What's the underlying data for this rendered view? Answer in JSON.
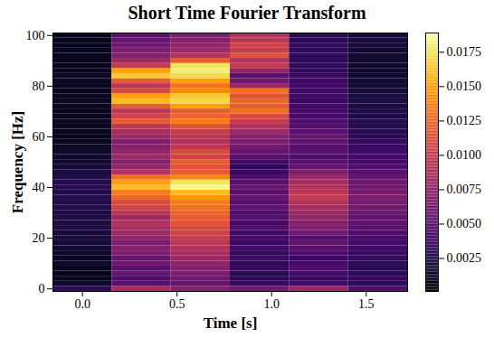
{
  "chart_data": {
    "type": "heatmap",
    "title": "Short Time Fourier Transform",
    "x_label": "Time [s]",
    "y_label": "Frequency [Hz]",
    "color": "inferno",
    "grid": false,
    "xlim": [
      -0.15625,
      1.71875
    ],
    "xticks": [
      {
        "value": 0,
        "label": "0.0"
      },
      0.5,
      {
        "value": 1,
        "label": "1.0"
      },
      1.5
    ],
    "ylim": [
      -1,
      101
    ],
    "yticks": [
      0,
      20,
      40,
      60,
      80,
      100
    ],
    "x": [
      0,
      0.3125,
      0.625,
      0.9375,
      1.25,
      1.5625
    ],
    "y": [
      0,
      2,
      4,
      6,
      8,
      10,
      12,
      14,
      16,
      18,
      20,
      22,
      24,
      26,
      28,
      30,
      32,
      34,
      36,
      38,
      40,
      42,
      44,
      46,
      48,
      50,
      52,
      54,
      56,
      58,
      60,
      62,
      64,
      66,
      68,
      70,
      72,
      74,
      76,
      78,
      80,
      82,
      84,
      86,
      88,
      90,
      92,
      94,
      96,
      98,
      100
    ],
    "values": [
      [
        0.003,
        0.0085,
        0.007,
        0.006,
        0.008,
        0.0045
      ],
      [
        0.0015,
        0.005,
        0.0055,
        0.0035,
        0.004,
        0.003
      ],
      [
        0.0012,
        0.0045,
        0.006,
        0.003,
        0.0035,
        0.0032
      ],
      [
        0.001,
        0.0055,
        0.0065,
        0.0028,
        0.004,
        0.003
      ],
      [
        0.0012,
        0.005,
        0.007,
        0.0035,
        0.0045,
        0.0028
      ],
      [
        0.0015,
        0.006,
        0.0075,
        0.003,
        0.004,
        0.003
      ],
      [
        0.0013,
        0.0055,
        0.008,
        0.0038,
        0.0035,
        0.0033
      ],
      [
        0.0016,
        0.0065,
        0.0085,
        0.0032,
        0.0045,
        0.0035
      ],
      [
        0.0018,
        0.007,
        0.009,
        0.004,
        0.005,
        0.0038
      ],
      [
        0.002,
        0.0065,
        0.0095,
        0.0035,
        0.0055,
        0.004
      ],
      [
        0.0022,
        0.0075,
        0.01,
        0.0042,
        0.0048,
        0.0042
      ],
      [
        0.002,
        0.008,
        0.0105,
        0.0038,
        0.006,
        0.0045
      ],
      [
        0.0025,
        0.0085,
        0.011,
        0.0045,
        0.0065,
        0.005
      ],
      [
        0.0022,
        0.009,
        0.0115,
        0.004,
        0.007,
        0.0052
      ],
      [
        0.0025,
        0.008,
        0.012,
        0.0048,
        0.0075,
        0.0055
      ],
      [
        0.0023,
        0.0095,
        0.0125,
        0.0045,
        0.008,
        0.0058
      ],
      [
        0.0026,
        0.0105,
        0.013,
        0.0052,
        0.0085,
        0.006
      ],
      [
        0.0024,
        0.011,
        0.0135,
        0.0048,
        0.009,
        0.0062
      ],
      [
        0.0027,
        0.0125,
        0.0145,
        0.0055,
        0.01,
        0.0065
      ],
      [
        0.0025,
        0.0135,
        0.016,
        0.005,
        0.0095,
        0.0063
      ],
      [
        0.0028,
        0.016,
        0.0185,
        0.0055,
        0.009,
        0.006
      ],
      [
        0.0026,
        0.015,
        0.0175,
        0.005,
        0.0085,
        0.0058
      ],
      [
        0.0024,
        0.013,
        0.014,
        0.0045,
        0.008,
        0.0055
      ],
      [
        0.0022,
        0.009,
        0.012,
        0.0035,
        0.0065,
        0.005
      ],
      [
        0.002,
        0.0075,
        0.0115,
        0.003,
        0.0055,
        0.0045
      ],
      [
        0.0018,
        0.007,
        0.012,
        0.004,
        0.005,
        0.0042
      ],
      [
        0.0017,
        0.008,
        0.0105,
        0.005,
        0.0045,
        0.004
      ],
      [
        0.0015,
        0.0075,
        0.011,
        0.0055,
        0.005,
        0.0038
      ],
      [
        0.0014,
        0.007,
        0.0095,
        0.006,
        0.0048,
        0.0035
      ],
      [
        0.0012,
        0.0065,
        0.009,
        0.0065,
        0.0052,
        0.0033
      ],
      [
        0.001,
        0.008,
        0.0095,
        0.007,
        0.0055,
        0.003
      ],
      [
        0.0011,
        0.0085,
        0.01,
        0.008,
        0.005,
        0.0028
      ],
      [
        0.0012,
        0.0095,
        0.0115,
        0.009,
        0.0048,
        0.0027
      ],
      [
        0.0013,
        0.012,
        0.0135,
        0.01,
        0.0045,
        0.0026
      ],
      [
        0.0012,
        0.0105,
        0.0125,
        0.011,
        0.0042,
        0.0025
      ],
      [
        0.0011,
        0.0095,
        0.012,
        0.013,
        0.004,
        0.0024
      ],
      [
        0.0013,
        0.012,
        0.015,
        0.012,
        0.0038,
        0.0023
      ],
      [
        0.0014,
        0.016,
        0.017,
        0.0125,
        0.0036,
        0.0022
      ],
      [
        0.0012,
        0.015,
        0.0165,
        0.0115,
        0.0035,
        0.0021
      ],
      [
        0.0011,
        0.011,
        0.014,
        0.013,
        0.0038,
        0.002
      ],
      [
        0.0012,
        0.0095,
        0.013,
        0.008,
        0.004,
        0.0019
      ],
      [
        0.0013,
        0.012,
        0.015,
        0.006,
        0.0037,
        0.0018
      ],
      [
        0.0014,
        0.0165,
        0.017,
        0.005,
        0.0035,
        0.0017
      ],
      [
        0.0013,
        0.015,
        0.018,
        0.0075,
        0.0033,
        0.0016
      ],
      [
        0.0012,
        0.01,
        0.0175,
        0.01,
        0.0032,
        0.0016
      ],
      [
        0.0011,
        0.008,
        0.012,
        0.009,
        0.003,
        0.0017
      ],
      [
        0.0012,
        0.007,
        0.009,
        0.0115,
        0.0031,
        0.0018
      ],
      [
        0.0013,
        0.0065,
        0.008,
        0.01,
        0.003,
        0.0019
      ],
      [
        0.0012,
        0.006,
        0.0075,
        0.0105,
        0.0032,
        0.002
      ],
      [
        0.0011,
        0.0055,
        0.007,
        0.0095,
        0.003,
        0.0021
      ],
      [
        0.001,
        0.005,
        0.0065,
        0.009,
        0.0028,
        0.002
      ]
    ],
    "colorbar": {
      "range": [
        0.0001,
        0.0189
      ],
      "ticks": [
        0.0025,
        {
          "value": 0.005,
          "label": "0.0050"
        },
        0.0075,
        {
          "value": 0.01,
          "label": "0.0100"
        },
        0.0125,
        {
          "value": 0.015,
          "label": "0.0150"
        },
        0.0175
      ]
    }
  }
}
